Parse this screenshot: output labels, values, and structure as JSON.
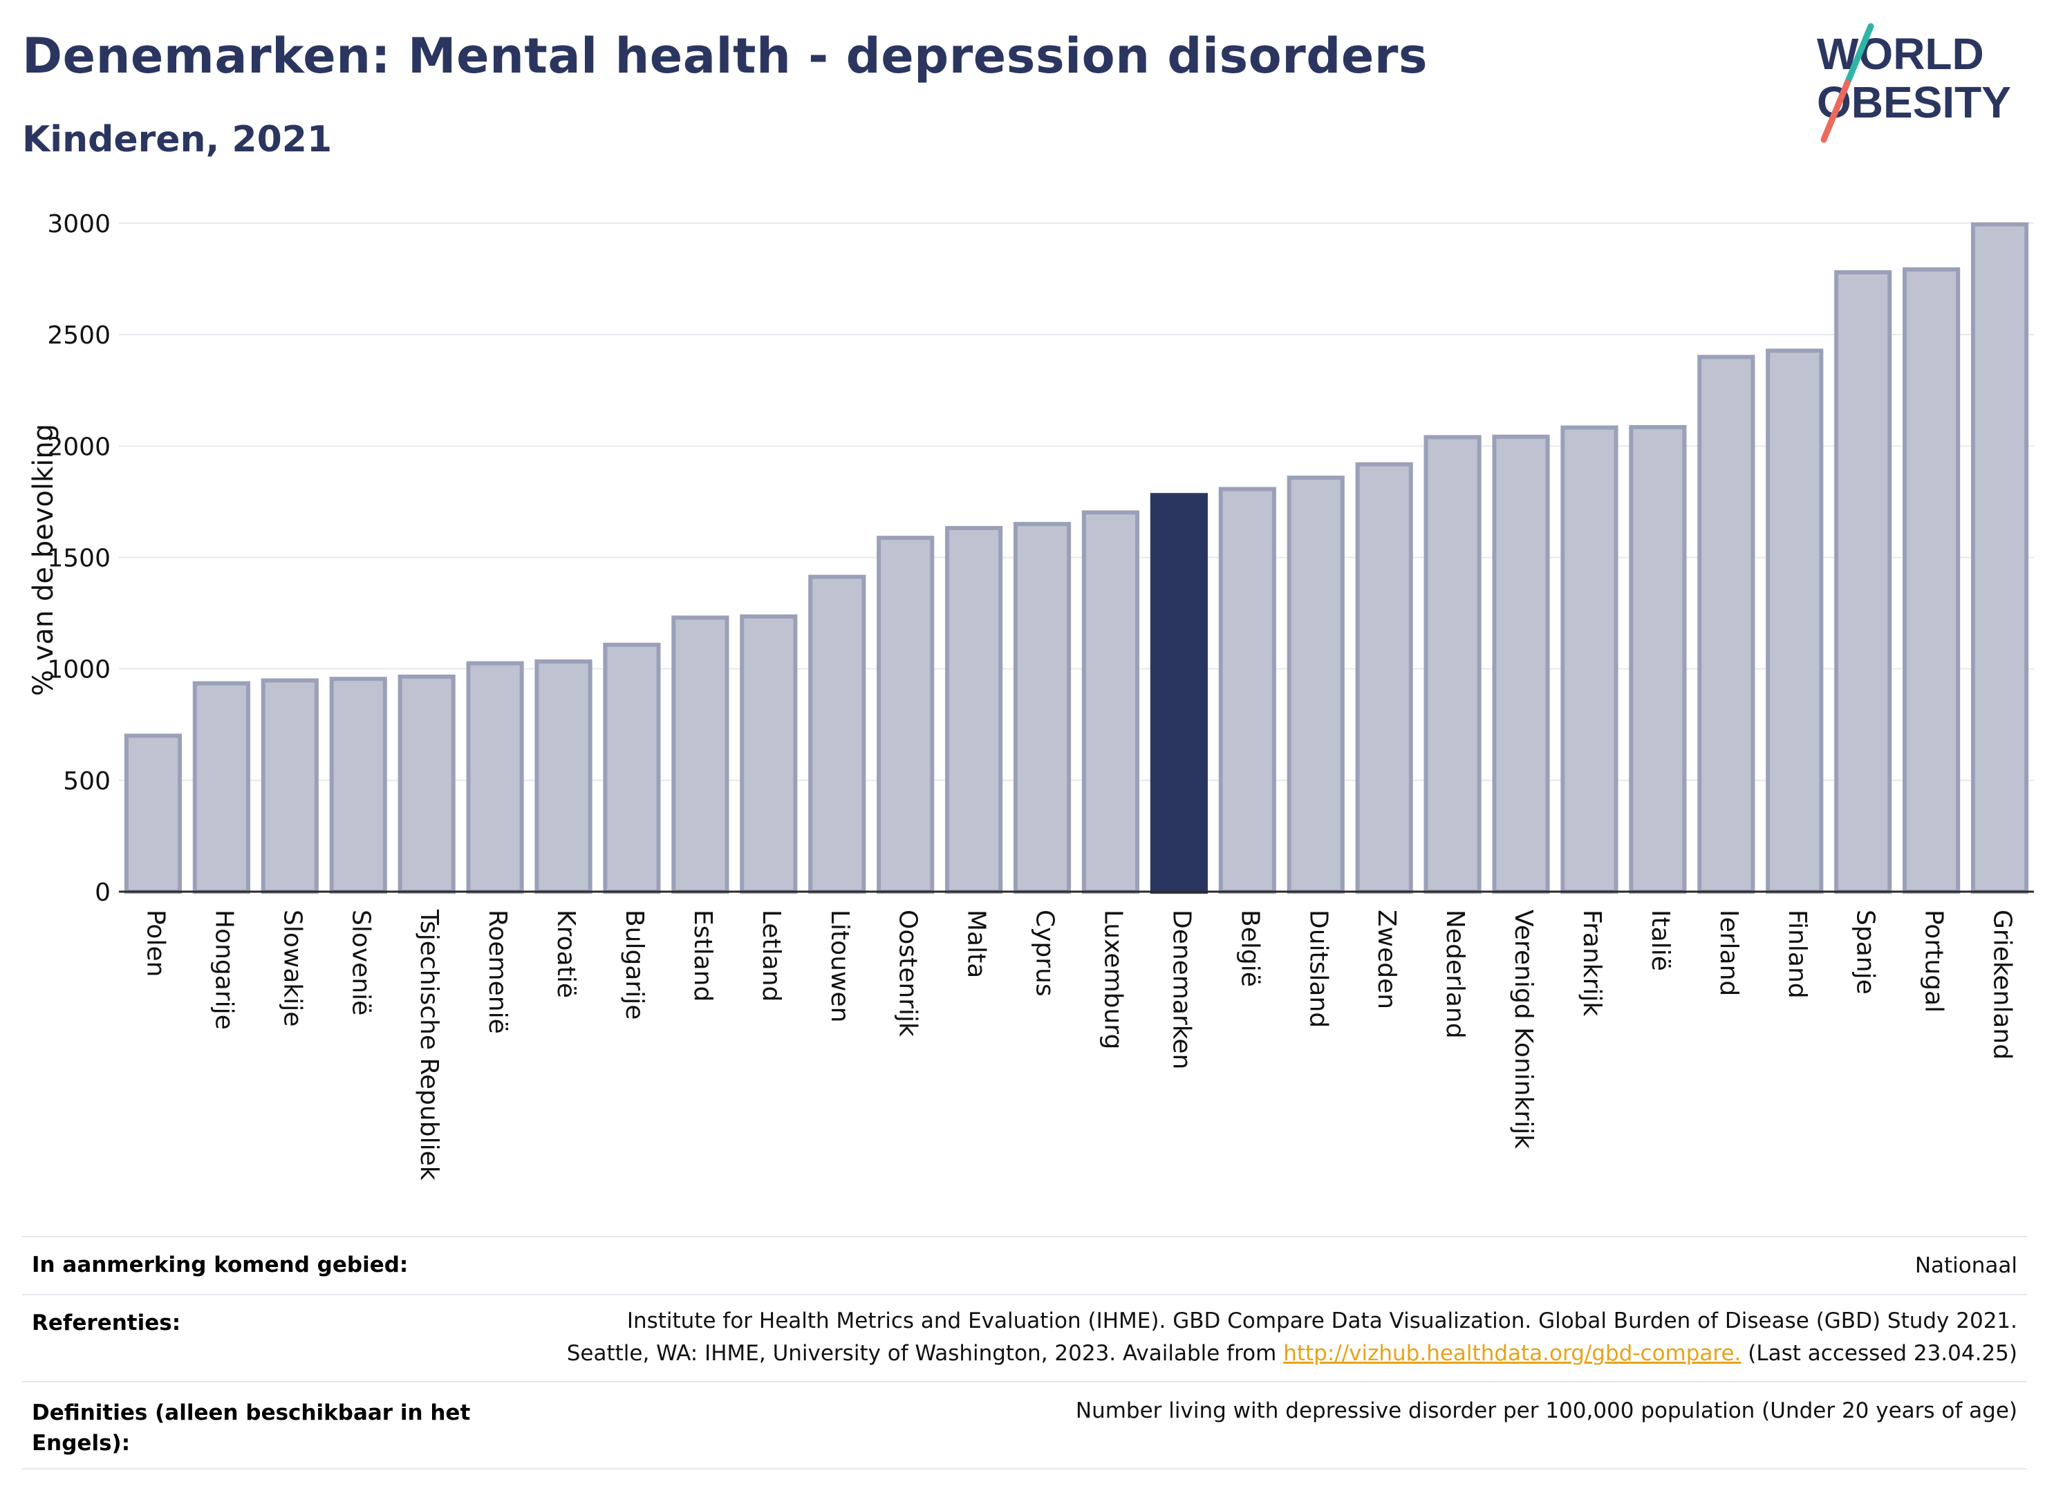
{
  "header": {
    "title": "Denemarken: Mental health - depression disorders",
    "subtitle": "Kinderen, 2021"
  },
  "logo": {
    "line1": "WORLD",
    "line2": "OBESITY",
    "icon": "world-obesity-logo"
  },
  "colors": {
    "highlight_bar": "#2b3660",
    "other_bar_fill": "#bfc3d1",
    "other_bar_stroke": "#9aa0b8",
    "title": "#2b3660",
    "grid": "#e6e8ef",
    "link": "#e8a317"
  },
  "chart_data": {
    "type": "bar",
    "title": "Denemarken: Mental health - depression disorders",
    "subtitle": "Kinderen, 2021",
    "ylabel": "% van de bevolking",
    "xlabel": "",
    "ylim": [
      0,
      3000
    ],
    "yticks": [
      0,
      500,
      1000,
      1500,
      2000,
      2500,
      3000
    ],
    "grid": true,
    "highlight": "Denemarken",
    "categories": [
      "Polen",
      "Hongarije",
      "Slowakije",
      "Slovenië",
      "Tsjechische Republiek",
      "Roemenië",
      "Kroatië",
      "Bulgarije",
      "Estland",
      "Letland",
      "Litouwen",
      "Oostenrijk",
      "Malta",
      "Cyprus",
      "Luxemburg",
      "Denemarken",
      "België",
      "Duitsland",
      "Zweden",
      "Nederland",
      "Verenigd Koninkrijk",
      "Frankrijk",
      "Italië",
      "Ierland",
      "Finland",
      "Spanje",
      "Portugal",
      "Griekenland"
    ],
    "values": [
      700,
      935,
      948,
      955,
      965,
      1025,
      1033,
      1108,
      1230,
      1235,
      1413,
      1588,
      1632,
      1650,
      1702,
      1780,
      1807,
      1858,
      1918,
      2040,
      2042,
      2083,
      2085,
      2400,
      2428,
      2780,
      2793,
      2995
    ]
  },
  "footer": {
    "rows": [
      {
        "key": "In aanmerking komend gebied:",
        "value_lines": [
          "Nationaal"
        ]
      },
      {
        "key": "Referenties:",
        "value_lines": [
          "Institute for Health Metrics and Evaluation (IHME). GBD Compare Data Visualization. Global Burden of Disease (GBD) Study 2021.",
          "Seattle, WA: IHME, University of Washington, 2023. Available from "
        ],
        "link": "http://vizhub.healthdata.org/gbd-compare.",
        "after_link": " (Last accessed 23.04.25)"
      },
      {
        "key_lines": [
          "Definities (alleen beschikbaar in het",
          "Engels):"
        ],
        "value_lines": [
          "Number living with depressive disorder per 100,000 population (Under 20 years of age)"
        ]
      }
    ]
  }
}
